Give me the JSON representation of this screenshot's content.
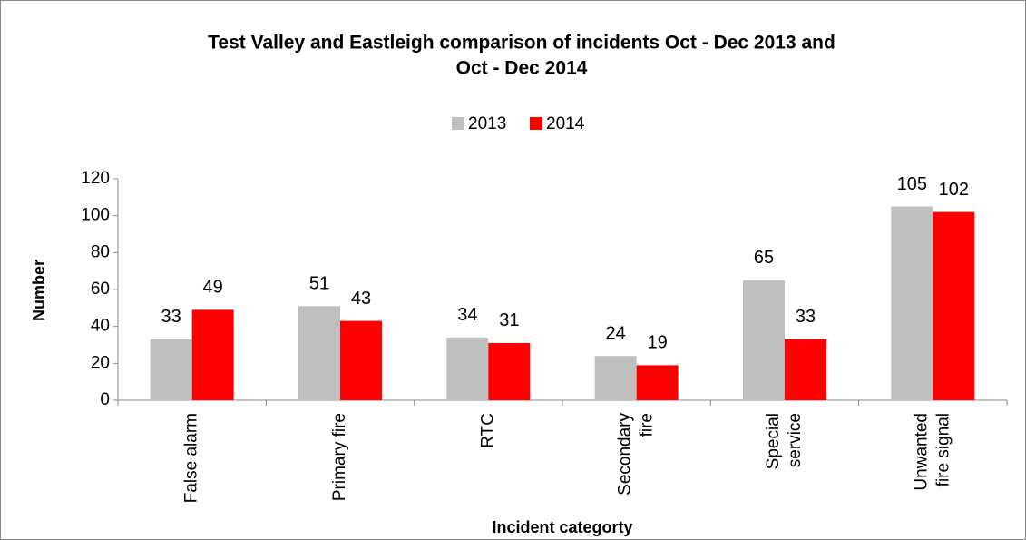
{
  "chart_data": {
    "type": "bar",
    "title": "Test Valley and Eastleigh comparison of incidents Oct - Dec 2013 and",
    "title_line2": "Oct - Dec 2014",
    "x_label": "Incident categorty",
    "y_label": "Number",
    "categories": [
      "False alarm",
      "Primary fire",
      "RTC",
      "Secondary\nfire",
      "Special\nservice",
      "Unwanted\nfire signal"
    ],
    "series": [
      {
        "name": "2013",
        "color": "#bfbfbf",
        "values": [
          33,
          51,
          34,
          24,
          65,
          105
        ]
      },
      {
        "name": "2014",
        "color": "#ff0000",
        "values": [
          49,
          43,
          31,
          19,
          33,
          102
        ]
      }
    ],
    "ylim": [
      0,
      120
    ],
    "yticks": [
      0,
      20,
      40,
      60,
      80,
      100,
      120
    ],
    "legend": "top"
  }
}
